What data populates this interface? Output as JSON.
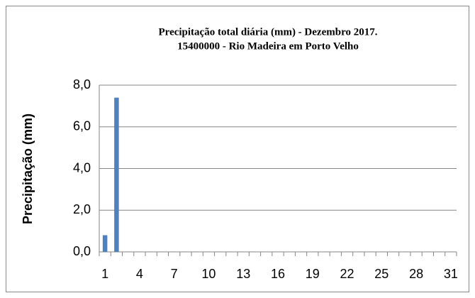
{
  "chart_data": {
    "type": "bar",
    "title": "Precipitação total diária (mm) - Dezembro  2017.",
    "subtitle": "15400000  - Rio Madeira em Porto Velho",
    "y_label": "Precipitação (mm)",
    "categories": [
      1,
      null,
      null,
      4,
      null,
      null,
      7,
      null,
      null,
      10,
      null,
      null,
      13,
      null,
      null,
      16,
      null,
      null,
      19,
      null,
      null,
      22,
      null,
      null,
      25,
      null,
      null,
      28,
      null,
      null,
      31
    ],
    "values": [
      0.8,
      7.4,
      0,
      0,
      0,
      0,
      0,
      0,
      0,
      0,
      0,
      0,
      0,
      0,
      0,
      0,
      0,
      0,
      0,
      0,
      0,
      0,
      0,
      0,
      0,
      0,
      0,
      0,
      0,
      0,
      0
    ],
    "color": "#4f81bd",
    "ylim": [
      0,
      8
    ],
    "yticks": [
      {
        "value": 0,
        "label": "0,0"
      },
      {
        "value": 2,
        "label": "2,0"
      },
      {
        "value": 4,
        "label": "4,0"
      },
      {
        "value": 6,
        "label": "6,0"
      },
      {
        "value": 8,
        "label": "8,0"
      }
    ],
    "grid": true
  }
}
